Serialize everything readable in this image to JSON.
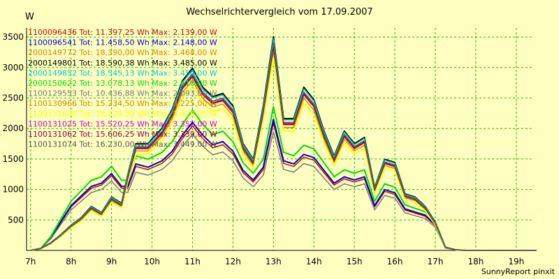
{
  "footer": "SunnyReport pinxit",
  "chart_data": {
    "type": "line",
    "title": "Wechselrichtervergleich vom 17.09.2007",
    "ylabel": "W",
    "xlabel": "",
    "ylim": [
      0,
      3650
    ],
    "xlim": [
      6.9,
      19.4
    ],
    "yticks": [
      500,
      1000,
      1500,
      2000,
      2500,
      3000,
      3500
    ],
    "xticks": [
      {
        "v": 7,
        "label": "7h"
      },
      {
        "v": 8,
        "label": "8h"
      },
      {
        "v": 9,
        "label": "9h"
      },
      {
        "v": 10,
        "label": "10h"
      },
      {
        "v": 11,
        "label": "11h"
      },
      {
        "v": 12,
        "label": "12h"
      },
      {
        "v": 13,
        "label": "13h"
      },
      {
        "v": 14,
        "label": "14h"
      },
      {
        "v": 15,
        "label": "15h"
      },
      {
        "v": 16,
        "label": "16h"
      },
      {
        "v": 17,
        "label": "17h"
      },
      {
        "v": 18,
        "label": "18h"
      },
      {
        "v": 19,
        "label": "19h"
      }
    ],
    "grid": true,
    "legend_position": "top-left",
    "x": [
      7.0,
      7.25,
      7.5,
      7.75,
      8.0,
      8.25,
      8.5,
      8.75,
      9.0,
      9.25,
      9.4,
      9.6,
      9.9,
      10.25,
      10.5,
      10.75,
      11.0,
      11.25,
      11.5,
      11.75,
      12.0,
      12.25,
      12.5,
      12.75,
      13.0,
      13.25,
      13.5,
      13.75,
      14.0,
      14.25,
      14.5,
      14.75,
      15.0,
      15.25,
      15.5,
      15.75,
      16.0,
      16.25,
      16.5,
      16.75,
      17.0,
      17.25,
      17.5,
      17.75,
      18.0,
      18.5,
      19.0,
      19.5
    ],
    "profiles": {
      "a": [
        0,
        30,
        120,
        250,
        400,
        520,
        700,
        600,
        850,
        750,
        1200,
        1700,
        1700,
        1950,
        2250,
        2700,
        2900,
        2600,
        2450,
        2500,
        2300,
        1700,
        1450,
        2300,
        3400,
        2100,
        2100,
        2600,
        2400,
        1900,
        1500,
        1900,
        1700,
        1800,
        1000,
        1450,
        1400,
        900,
        850,
        700,
        450,
        50,
        10,
        0,
        0,
        0,
        0,
        0
      ],
      "b": [
        0,
        30,
        200,
        450,
        700,
        850,
        1000,
        1050,
        1200,
        1000,
        1000,
        1350,
        1300,
        1400,
        1550,
        1800,
        2000,
        1800,
        1650,
        1700,
        1550,
        1250,
        1100,
        1300,
        2050,
        1400,
        1350,
        1500,
        1450,
        1250,
        1050,
        1150,
        1100,
        1150,
        700,
        950,
        900,
        650,
        600,
        550,
        400,
        40,
        10,
        0,
        0,
        0,
        0,
        0
      ]
    },
    "series": [
      {
        "id": "1100096436",
        "label": "1100096436 Tot: 11.397,25 Wh Max: 2.139,00 W",
        "color": "#cc0000",
        "shape": "b",
        "scale": 1.02,
        "width": 1.5
      },
      {
        "id": "1100096541",
        "label": "1100096541 Tot: 11.458,50 Wh Max: 2.148,00 W",
        "color": "#0000cc",
        "shape": "b",
        "scale": 1.05,
        "width": 2
      },
      {
        "id": "2000149772",
        "label": "2000149772 Tot: 18.390,00 Wh Max: 3.468,00 W",
        "color": "#cc8800",
        "shape": "a",
        "scale": 0.98,
        "width": 1.5
      },
      {
        "id": "2000149801",
        "label": "2000149801 Tot: 18.590,38 Wh Max: 3.485,00 W",
        "color": "#000000",
        "shape": "a",
        "scale": 1.03,
        "width": 2
      },
      {
        "id": "2000149852",
        "label": "2000149852 Tot: 18.545,13 Wh Max: 3.454,00 W",
        "color": "#00cccc",
        "shape": "a",
        "scale": 1.02,
        "width": 1.5
      },
      {
        "id": "2000150622",
        "label": "2000150622 Tot: 13.078,13 Wh Max: 2.410,00 W",
        "color": "#00dd00",
        "shape": "b",
        "scale": 1.15,
        "width": 2
      },
      {
        "id": "1100129553",
        "label": "1100129553 Tot: 10.436,88 Wh Max: 2.093,00 W",
        "color": "#777777",
        "shape": "b",
        "scale": 0.95,
        "width": 1.5
      },
      {
        "id": "1100130966",
        "label": "1100130966 Tot: 15.234,50 Wh Max: 3.225,00 W",
        "color": "#cc8800",
        "shape": "a",
        "scale": 0.96,
        "width": 1.5
      },
      {
        "id": "1100131006",
        "label": "1100131006 Tot: 18.429,50 Wh Max: 3.425,00 W",
        "color": "#ffff00",
        "shape": "a",
        "scale": 0.93,
        "width": 2
      },
      {
        "id": "1100131025",
        "label": "1100131025 Tot: 15.520,25 Wh Max: 3.352,00 W",
        "color": "#cc00cc",
        "shape": "a",
        "scale": 0.99,
        "width": 1.5
      },
      {
        "id": "1100131062",
        "label": "1100131062 Tot: 15.606,25 Wh Max: 3.339,00 W",
        "color": "#880044",
        "shape": "a",
        "scale": 0.985,
        "width": 1.5
      },
      {
        "id": "1100131074",
        "label": "1100131074 Tot: 16.230,00 Wh Max: 3.449,00 W",
        "color": "#555555",
        "shape": "a",
        "scale": 1.0,
        "width": 1.5
      }
    ]
  }
}
